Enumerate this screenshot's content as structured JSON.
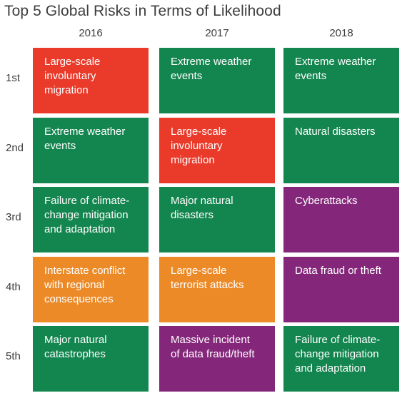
{
  "title": "Top 5 Global Risks in Terms of Likelihood",
  "colors": {
    "Societal": "#e93a2a",
    "Environmental": "#13854f",
    "Geopolitical": "#ec8a28",
    "Technological": "#84277a"
  },
  "chart_data": {
    "type": "table",
    "title": "Top 5 Global Risks in Terms of Likelihood",
    "columns": [
      "2016",
      "2017",
      "2018"
    ],
    "rows": [
      "1st",
      "2nd",
      "3rd",
      "4th",
      "5th"
    ],
    "cells": [
      [
        {
          "text": "Large-scale\ninvoluntary\nmigration",
          "category": "Societal"
        },
        {
          "text": "Extreme weather\nevents",
          "category": "Environmental"
        },
        {
          "text": "Extreme weather\nevents",
          "category": "Environmental"
        }
      ],
      [
        {
          "text": "Extreme weather\nevents",
          "category": "Environmental"
        },
        {
          "text": "Large-scale\ninvoluntary\nmigration",
          "category": "Societal"
        },
        {
          "text": "Natural disasters",
          "category": "Environmental"
        }
      ],
      [
        {
          "text": "Failure of climate-\nchange mitigation\nand adaptation",
          "category": "Environmental"
        },
        {
          "text": "Major natural\ndisasters",
          "category": "Environmental"
        },
        {
          "text": "Cyberattacks",
          "category": "Technological"
        }
      ],
      [
        {
          "text": "Interstate conflict\nwith regional\nconsequences",
          "category": "Geopolitical"
        },
        {
          "text": "Large-scale\nterrorist attacks",
          "category": "Geopolitical"
        },
        {
          "text": "Data fraud or theft",
          "category": "Technological"
        }
      ],
      [
        {
          "text": "Major natural\ncatastrophes",
          "category": "Environmental"
        },
        {
          "text": "Massive incident\nof data fraud/theft",
          "category": "Technological"
        },
        {
          "text": "Failure of climate-\nchange mitigation\nand adaptation",
          "category": "Environmental"
        }
      ]
    ]
  }
}
